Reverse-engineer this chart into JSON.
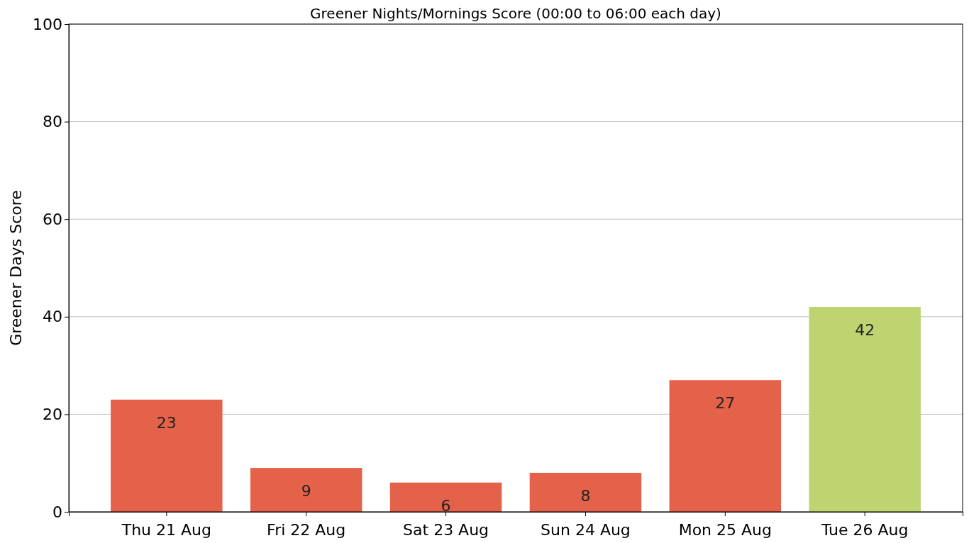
{
  "chart_data": {
    "type": "bar",
    "title": "Greener Nights/Mornings Score (00:00 to 06:00 each day)",
    "ylabel": "Greener Days Score",
    "categories": [
      "Thu 21 Aug",
      "Fri 22 Aug",
      "Sat 23 Aug",
      "Sun 24 Aug",
      "Mon 25 Aug",
      "Tue 26 Aug"
    ],
    "values": [
      23,
      9,
      6,
      8,
      27,
      42
    ],
    "colors": [
      "#e5624a",
      "#e5624a",
      "#e5624a",
      "#e5624a",
      "#e5624a",
      "#bdd471"
    ],
    "ylim": [
      0,
      100
    ],
    "yticks": [
      0,
      20,
      40,
      60,
      80,
      100
    ],
    "grid": "y",
    "data_labels": true
  }
}
